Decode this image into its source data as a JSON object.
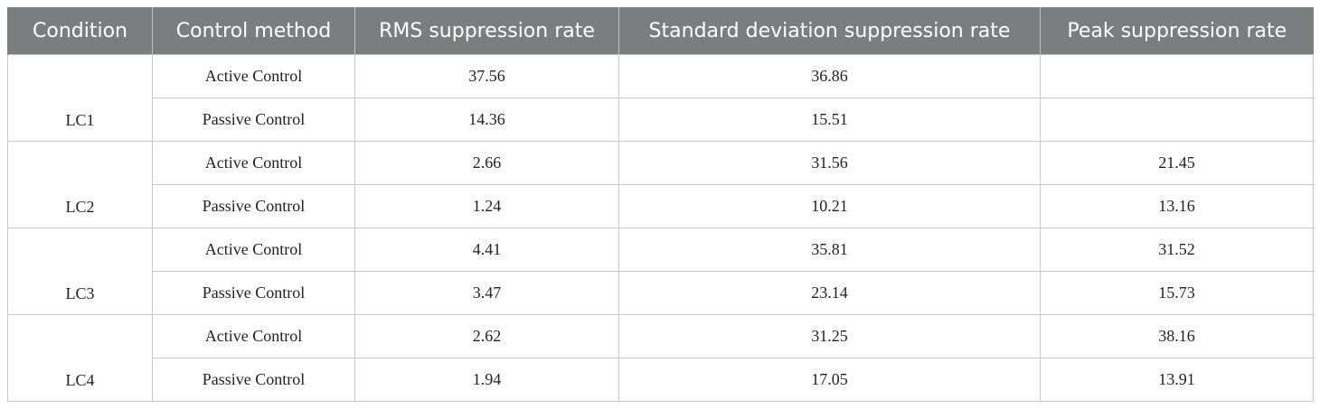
{
  "table": {
    "columns": [
      "Condition",
      "Control method",
      "RMS suppression rate",
      "Standard deviation suppression rate",
      "Peak suppression rate"
    ],
    "groups": [
      {
        "condition": "LC1",
        "rows": [
          [
            "Active Control",
            37.56,
            36.86,
            null
          ],
          [
            "Passive Control",
            14.36,
            15.51,
            null
          ]
        ]
      },
      {
        "condition": "LC2",
        "rows": [
          [
            "Active Control",
            2.66,
            31.56,
            21.45
          ],
          [
            "Passive Control",
            1.24,
            10.21,
            13.16
          ]
        ]
      },
      {
        "condition": "LC3",
        "rows": [
          [
            "Active Control",
            4.41,
            35.81,
            31.52
          ],
          [
            "Passive Control",
            3.47,
            23.14,
            15.73
          ]
        ]
      },
      {
        "condition": "LC4",
        "rows": [
          [
            "Active Control",
            2.62,
            31.25,
            38.16
          ],
          [
            "Passive Control",
            1.94,
            17.05,
            13.91
          ]
        ]
      }
    ]
  }
}
